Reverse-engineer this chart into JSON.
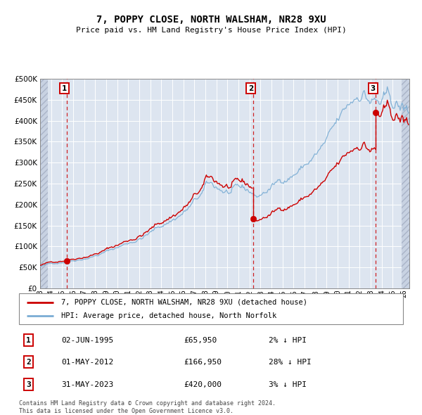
{
  "title": "7, POPPY CLOSE, NORTH WALSHAM, NR28 9XU",
  "subtitle": "Price paid vs. HM Land Registry's House Price Index (HPI)",
  "footer": "Contains HM Land Registry data © Crown copyright and database right 2024.\nThis data is licensed under the Open Government Licence v3.0.",
  "legend_line1": "7, POPPY CLOSE, NORTH WALSHAM, NR28 9XU (detached house)",
  "legend_line2": "HPI: Average price, detached house, North Norfolk",
  "transactions": [
    {
      "num": 1,
      "date": "02-JUN-1995",
      "price": 65950,
      "pct": "2%",
      "dir": "↓",
      "x_year": 1995.42
    },
    {
      "num": 2,
      "date": "01-MAY-2012",
      "price": 166950,
      "pct": "28%",
      "dir": "↓",
      "x_year": 2012.33
    },
    {
      "num": 3,
      "date": "31-MAY-2023",
      "price": 420000,
      "pct": "3%",
      "dir": "↓",
      "x_year": 2023.42
    }
  ],
  "sale_prices": [
    65950,
    166950,
    420000
  ],
  "plot_bg": "#dde5f0",
  "red_line_color": "#cc0000",
  "blue_line_color": "#7aadd4",
  "dashed_line_color": "#cc0000",
  "dot_color": "#cc0000",
  "ylim": [
    0,
    500000
  ],
  "yticks": [
    0,
    50000,
    100000,
    150000,
    200000,
    250000,
    300000,
    350000,
    400000,
    450000,
    500000
  ],
  "xlim_start": 1993.0,
  "xlim_end": 2026.5,
  "xticks": [
    1993,
    1994,
    1995,
    1996,
    1997,
    1998,
    1999,
    2000,
    2001,
    2002,
    2003,
    2004,
    2005,
    2006,
    2007,
    2008,
    2009,
    2010,
    2011,
    2012,
    2013,
    2014,
    2015,
    2016,
    2017,
    2018,
    2019,
    2020,
    2021,
    2022,
    2023,
    2024,
    2025,
    2026
  ],
  "hatch_left_start": 1993.0,
  "hatch_left_end": 1993.7,
  "hatch_right_start": 2025.8,
  "hatch_right_end": 2026.5
}
